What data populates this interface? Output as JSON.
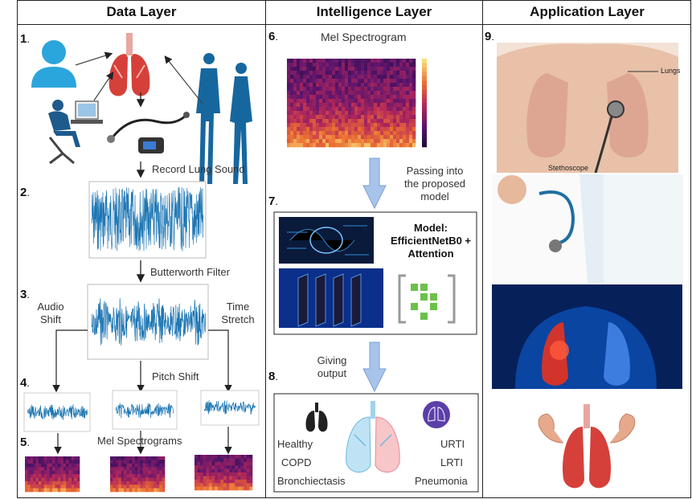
{
  "columns": {
    "data": "Data Layer",
    "intelligence": "Intelligence Layer",
    "application": "Application Layer"
  },
  "steps": {
    "s1": "1",
    "s2": "2",
    "s3": "3",
    "s4": "4",
    "s5": "5",
    "s6": "6",
    "s7": "7",
    "s8": "8",
    "s9": "9"
  },
  "data_layer": {
    "record": "Record Lung Sound",
    "filter": "Butterworth Filter",
    "audio_shift": "Audio\nShift",
    "time_stretch": "Time\nStretch",
    "pitch_shift": "Pitch Shift",
    "mel_spectrograms": "Mel Spectrograms"
  },
  "intelligence_layer": {
    "spectrogram_title": "Mel Spectrogram",
    "passing": "Passing into\nthe proposed\nmodel",
    "model": "Model:\nEfficientNetB0 +\nAttention",
    "giving": "Giving\noutput"
  },
  "classes": {
    "left": [
      "Healthy",
      "COPD",
      "Bronchiectasis"
    ],
    "right": [
      "URTI",
      "LRTI",
      "Pneumonia"
    ]
  },
  "application_layer": {
    "lungs_label": "Lungs",
    "stethoscope_label": "Stethoscope"
  },
  "colors": {
    "signal": "#1f77b4",
    "arrow_fill": "#a9c4ea",
    "arrow_stroke": "#7a9fd6",
    "lung_red": "#d6403a",
    "person_blue": "#1e6fb8"
  }
}
